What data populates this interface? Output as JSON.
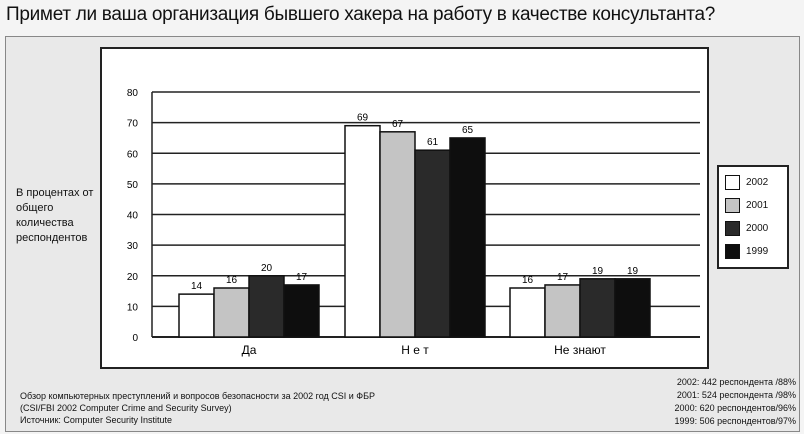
{
  "title": "Примет ли ваша организация бывшего хакера на работу в качестве консультанта?",
  "chart_data": {
    "type": "bar",
    "title": "",
    "ylabel": "В процентах от общего количества респондентов",
    "xlabel": "",
    "categories": [
      "Да",
      "Н е т",
      "Не знают"
    ],
    "ylim": [
      0,
      80
    ],
    "yticks": [
      0,
      10,
      20,
      30,
      40,
      50,
      60,
      70,
      80
    ],
    "grid": true,
    "legend_position": "right",
    "series": [
      {
        "name": "2002",
        "values": [
          14,
          69,
          16
        ],
        "color": "#ffffff"
      },
      {
        "name": "2001",
        "values": [
          16,
          67,
          17
        ],
        "color": "#c4c4c4"
      },
      {
        "name": "2000",
        "values": [
          20,
          61,
          19
        ],
        "color": "#2a2a2a"
      },
      {
        "name": "1999",
        "values": [
          17,
          65,
          19
        ],
        "color": "#0e0e0e"
      }
    ]
  },
  "notes": [
    "Обзор компьютерных преступлений и вопросов безопасности за 2002 год CSI и ФБР",
    "(CSI/FBI 2002 Computer Crime and Security Survey)",
    "Источник: Computer Security Institute"
  ],
  "respondents": [
    "2002:  442 респондента /88%",
    "2001:  524 респондента /98%",
    "2000:  620 респондентов/96%",
    "1999:  506 респондентов/97%"
  ]
}
